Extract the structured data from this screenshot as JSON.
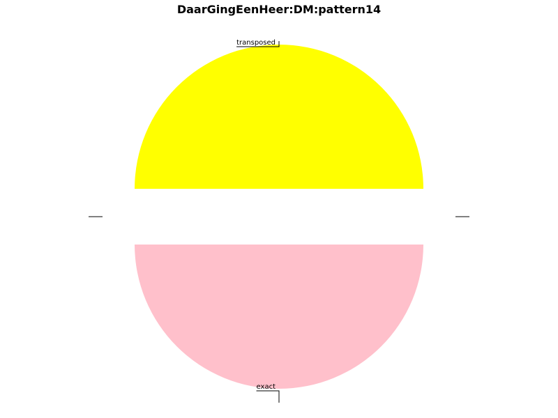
{
  "chart_data": {
    "type": "pie",
    "title": "DaarGingEenHeer:DM:pattern14",
    "slices": [
      {
        "label": "transposed",
        "value": 1,
        "color": "#ffff00",
        "exploded": true
      },
      {
        "label": "",
        "value": 0,
        "color": "#ffffff",
        "exploded": false
      },
      {
        "label": "exact",
        "value": 1,
        "color": "#ffc0cb",
        "exploded": true
      },
      {
        "label": "",
        "value": 0,
        "color": "#ffffff",
        "exploded": false
      }
    ],
    "start_angle_degrees": 0,
    "direction": "counterclockwise",
    "legend": "none"
  }
}
